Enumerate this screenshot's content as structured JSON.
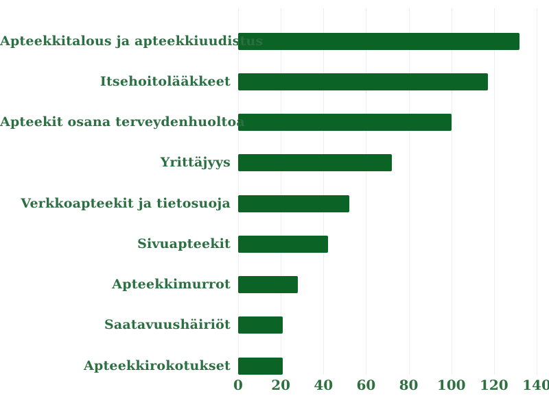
{
  "chart_data": {
    "type": "bar",
    "orientation": "horizontal",
    "title": "",
    "xlabel": "",
    "ylabel": "",
    "categories": [
      "Apteekkitalous ja apteekkiuudistus",
      "Itsehoitolääkkeet",
      "Apteekit osana terveydenhuoltoa",
      "Yrittäjyys",
      "Verkkoapteekit ja tietosuoja",
      "Sivuapteekit",
      "Apteekkimurrot",
      "Saatavuushäiriöt",
      "Apteekkirokotukset"
    ],
    "values": [
      132,
      117,
      100,
      72,
      52,
      42,
      28,
      21,
      21
    ],
    "xlim": [
      0,
      140
    ],
    "xticks": [
      "0",
      "20",
      "40",
      "60",
      "80",
      "100",
      "120",
      "140"
    ],
    "grid": true,
    "legend": false,
    "colors": {
      "bar": "#0b6426",
      "category_text": "#2b6f42",
      "tick_text": "#2e7040",
      "gridline": "#edefed",
      "background": "#ffffff"
    }
  }
}
